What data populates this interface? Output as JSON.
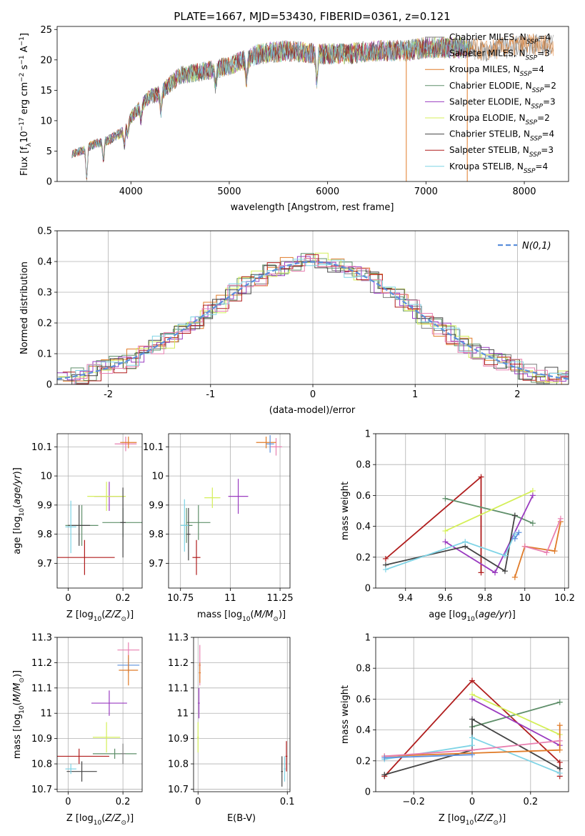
{
  "chart_data": [
    {
      "id": "spectrum",
      "type": "line",
      "title": "PLATE=1667, MJD=53430, FIBERID=0361, z=0.121",
      "xlabel": "wavelength [Angstrom, rest frame]",
      "ylabel": "Flux [f_λ10^-17 erg cm^-2 s^-1 A^-1]",
      "xlim": [
        3250,
        8450
      ],
      "ylim": [
        0,
        25.5
      ],
      "xticks": [
        4000,
        5000,
        6000,
        7000,
        8000
      ],
      "yticks": [
        0,
        5,
        10,
        15,
        20,
        25
      ],
      "legend_position": "upper right",
      "grid": false,
      "spectrum_continuum": {
        "x": [
          3400,
          3500,
          3600,
          3700,
          3800,
          3900,
          4000,
          4100,
          4200,
          4300,
          4400,
          4500,
          4700,
          5000,
          5300,
          5600,
          5900,
          6200,
          6500,
          6800,
          7000,
          7200,
          7400,
          7600,
          7800,
          8000,
          8200
        ],
        "y": [
          4.5,
          5.0,
          6.0,
          6.5,
          7.0,
          8.0,
          10.5,
          12.5,
          14.0,
          14.5,
          16.0,
          17.5,
          18.0,
          19.0,
          21.0,
          21.5,
          21.0,
          21.0,
          21.5,
          21.5,
          22.0,
          22.0,
          22.0,
          21.5,
          22.0,
          22.5,
          22.5
        ]
      },
      "absorption_features": [
        {
          "x": 3550,
          "depth": 5.0
        },
        {
          "x": 3720,
          "depth": 3.0
        },
        {
          "x": 3934,
          "depth": 3.0
        },
        {
          "x": 3968,
          "depth": 2.0
        },
        {
          "x": 4102,
          "depth": 2.5
        },
        {
          "x": 4305,
          "depth": 3.0
        },
        {
          "x": 4861,
          "depth": 3.0
        },
        {
          "x": 5175,
          "depth": 4.0
        },
        {
          "x": 5890,
          "depth": 5.0
        }
      ],
      "spikes": [
        {
          "x": 6800,
          "to": 0,
          "series": "Salpeter MILES"
        },
        {
          "x": 7420,
          "to": 0,
          "series": "Kroupa MILES"
        }
      ],
      "series": [
        {
          "name": "Chabrier MILES, N_SSP=4",
          "color": "#7f7f7f"
        },
        {
          "name": "Salpeter MILES, N_SSP=3",
          "color": "#7f7f7f"
        },
        {
          "name": "Kroupa MILES, N_SSP=4",
          "color": "#e07b28"
        },
        {
          "name": "Chabrier ELODIE, N_SSP=2",
          "color": "#5f8f6a"
        },
        {
          "name": "Salpeter ELODIE, N_SSP=3",
          "color": "#9a3bc0"
        },
        {
          "name": "Kroupa ELODIE, N_SSP=2",
          "color": "#d4ef58"
        },
        {
          "name": "Chabrier STELIB, N_SSP=4",
          "color": "#444444"
        },
        {
          "name": "Salpeter STELIB, N_SSP=3",
          "color": "#b01d1d"
        },
        {
          "name": "Kroupa STELIB, N_SSP=4",
          "color": "#7fd4e6"
        }
      ]
    },
    {
      "id": "residuals",
      "type": "line",
      "xlabel": "(data-model)/error",
      "ylabel": "Normed distribution",
      "xlim": [
        -2.5,
        2.5
      ],
      "ylim": [
        0,
        0.5
      ],
      "xticks": [
        -2,
        -1,
        0,
        1,
        2
      ],
      "yticks": [
        0.0,
        0.1,
        0.2,
        0.3,
        0.4,
        0.5
      ],
      "grid": true,
      "legend": "N(0,1)",
      "legend_position": "upper right",
      "gaussian_color": "#5b8fdc",
      "histogram_colors": [
        "#7f7f7f",
        "#e07b28",
        "#5f8f6a",
        "#9a3bc0",
        "#d4ef58",
        "#444444",
        "#b01d1d",
        "#7fd4e6",
        "#e87fb0"
      ]
    },
    {
      "id": "Z_age",
      "type": "scatter",
      "xlabel": "Z [log10(Z/Z_sun)]",
      "ylabel": "age [log10(age/yr)]",
      "xlim": [
        -0.04,
        0.27
      ],
      "ylim": [
        9.615,
        10.145
      ],
      "xticks": [
        0.0,
        0.2
      ],
      "yticks": [
        9.7,
        9.8,
        9.9,
        10.0,
        10.1
      ],
      "grid": true,
      "points": [
        {
          "x": 0.21,
          "y": 10.11,
          "xerr": 0.04,
          "yerr": 0.025,
          "color": "#e87fb0"
        },
        {
          "x": 0.22,
          "y": 10.115,
          "xerr": 0.03,
          "yerr": 0.02,
          "color": "#e07b28"
        },
        {
          "x": 0.2,
          "y": 9.84,
          "xerr": 0.075,
          "yerr": 0.05,
          "color": "#5f8f6a"
        },
        {
          "x": 0.15,
          "y": 9.93,
          "xerr": 0.055,
          "yerr": 0.05,
          "color": "#9a3bc0"
        },
        {
          "x": 0.14,
          "y": 9.93,
          "xerr": 0.07,
          "yerr": 0.05,
          "color": "#d4ef58"
        },
        {
          "x": 0.2,
          "y": 9.84,
          "xerr": 0.01,
          "yerr": 0.12,
          "color": "#444444"
        },
        {
          "x": 0.05,
          "y": 9.83,
          "xerr": 0.06,
          "yerr": 0.07,
          "color": "#5f8f6a"
        },
        {
          "x": 0.04,
          "y": 9.83,
          "xerr": 0.04,
          "yerr": 0.07,
          "color": "#444444"
        },
        {
          "x": 0.01,
          "y": 9.825,
          "xerr": 0.02,
          "yerr": 0.09,
          "color": "#7fd4e6"
        },
        {
          "x": 0.06,
          "y": 9.72,
          "xerr": 0.11,
          "yerr": 0.06,
          "color": "#b01d1d"
        }
      ]
    },
    {
      "id": "mass_age",
      "type": "scatter",
      "xlabel": "mass [log10(M/M_sun)]",
      "ylabel": "",
      "xlim": [
        10.69,
        11.3
      ],
      "ylim": [
        9.615,
        10.145
      ],
      "xticks": [
        10.75,
        11.0,
        11.25
      ],
      "yticks": [
        9.7,
        9.8,
        9.9,
        10.0,
        10.1
      ],
      "grid": true,
      "points": [
        {
          "x": 11.23,
          "y": 10.1,
          "xerr": 0.03,
          "yerr": 0.03,
          "color": "#e87fb0"
        },
        {
          "x": 11.18,
          "y": 10.115,
          "xerr": 0.05,
          "yerr": 0.02,
          "color": "#e07b28"
        },
        {
          "x": 11.2,
          "y": 10.11,
          "xerr": 0.02,
          "yerr": 0.03,
          "color": "#5b8fdc"
        },
        {
          "x": 11.04,
          "y": 9.93,
          "xerr": 0.05,
          "yerr": 0.06,
          "color": "#9a3bc0"
        },
        {
          "x": 10.91,
          "y": 9.925,
          "xerr": 0.04,
          "yerr": 0.035,
          "color": "#d4ef58"
        },
        {
          "x": 10.84,
          "y": 9.84,
          "xerr": 0.06,
          "yerr": 0.06,
          "color": "#5f8f6a"
        },
        {
          "x": 10.78,
          "y": 9.83,
          "xerr": 0.03,
          "yerr": 0.06,
          "color": "#5f8f6a"
        },
        {
          "x": 10.79,
          "y": 9.8,
          "xerr": 0.01,
          "yerr": 0.09,
          "color": "#444444"
        },
        {
          "x": 10.77,
          "y": 9.83,
          "xerr": 0.02,
          "yerr": 0.09,
          "color": "#7fd4e6"
        },
        {
          "x": 10.83,
          "y": 9.72,
          "xerr": 0.02,
          "yerr": 0.06,
          "color": "#b01d1d"
        }
      ]
    },
    {
      "id": "age_weight",
      "type": "line",
      "xlabel": "age [log10(age/yr)]",
      "ylabel": "mass weight",
      "xlim": [
        9.25,
        10.22
      ],
      "ylim": [
        0,
        1.0
      ],
      "xticks": [
        9.4,
        9.6,
        9.8,
        10.0,
        10.2
      ],
      "yticks": [
        0.0,
        0.2,
        0.4,
        0.6,
        0.8,
        1.0
      ],
      "grid": true,
      "series": [
        {
          "color": "#b01d1d",
          "x": [
            9.3,
            9.78,
            9.78
          ],
          "y": [
            0.19,
            0.72,
            0.1
          ]
        },
        {
          "color": "#5f8f6a",
          "x": [
            9.6,
            9.95,
            10.04
          ],
          "y": [
            0.58,
            0.47,
            0.42
          ]
        },
        {
          "color": "#d4ef58",
          "x": [
            9.6,
            10.04
          ],
          "y": [
            0.37,
            0.63
          ]
        },
        {
          "color": "#9a3bc0",
          "x": [
            9.6,
            9.85,
            10.04
          ],
          "y": [
            0.3,
            0.1,
            0.6
          ]
        },
        {
          "color": "#444444",
          "x": [
            9.3,
            9.7,
            9.9,
            9.95
          ],
          "y": [
            0.15,
            0.27,
            0.11,
            0.47
          ]
        },
        {
          "color": "#7fd4e6",
          "x": [
            9.3,
            9.7,
            9.9,
            9.95
          ],
          "y": [
            0.12,
            0.3,
            0.21,
            0.35
          ]
        },
        {
          "color": "#e07b28",
          "x": [
            9.95,
            10.0,
            10.15,
            10.18
          ],
          "y": [
            0.07,
            0.27,
            0.24,
            0.43
          ]
        },
        {
          "color": "#e87fb0",
          "x": [
            10.0,
            10.11,
            10.18
          ],
          "y": [
            0.27,
            0.23,
            0.45
          ]
        },
        {
          "color": "#5b8fdc",
          "x": [
            9.95,
            9.97
          ],
          "y": [
            0.32,
            0.36
          ]
        }
      ]
    },
    {
      "id": "Z_mass",
      "type": "scatter",
      "xlabel": "Z [log10(Z/Z_sun)]",
      "ylabel": "mass [log10(M/M_sun)]",
      "xlim": [
        -0.04,
        0.27
      ],
      "ylim": [
        10.69,
        11.3
      ],
      "xticks": [
        0.0,
        0.2
      ],
      "yticks": [
        10.7,
        10.8,
        10.9,
        11.0,
        11.1,
        11.2,
        11.3
      ],
      "grid": true,
      "points": [
        {
          "x": 0.22,
          "y": 11.25,
          "xerr": 0.04,
          "yerr": 0.03,
          "color": "#e87fb0"
        },
        {
          "x": 0.22,
          "y": 11.19,
          "xerr": 0.04,
          "yerr": 0.03,
          "color": "#5b8fdc"
        },
        {
          "x": 0.22,
          "y": 11.17,
          "xerr": 0.035,
          "yerr": 0.06,
          "color": "#e07b28"
        },
        {
          "x": 0.15,
          "y": 11.04,
          "xerr": 0.065,
          "yerr": 0.05,
          "color": "#9a3bc0"
        },
        {
          "x": 0.14,
          "y": 10.905,
          "xerr": 0.05,
          "yerr": 0.06,
          "color": "#d4ef58"
        },
        {
          "x": 0.17,
          "y": 10.84,
          "xerr": 0.08,
          "yerr": 0.02,
          "color": "#5f8f6a"
        },
        {
          "x": 0.04,
          "y": 10.83,
          "xerr": 0.11,
          "yerr": 0.03,
          "color": "#b01d1d"
        },
        {
          "x": 0.05,
          "y": 10.77,
          "xerr": 0.055,
          "yerr": 0.04,
          "color": "#444444"
        },
        {
          "x": 0.01,
          "y": 10.78,
          "xerr": 0.02,
          "yerr": 0.02,
          "color": "#7fd4e6"
        },
        {
          "x": 0.2,
          "y": 10.84,
          "xerr": 0.01,
          "yerr": 0.04,
          "color": "#7f7f7f"
        }
      ]
    },
    {
      "id": "ebv_mass",
      "type": "scatter",
      "xlabel": "E(B-V)",
      "ylabel": "",
      "xlim": [
        -0.005,
        0.103
      ],
      "ylim": [
        10.69,
        11.3
      ],
      "xticks": [
        0.0,
        0.1
      ],
      "yticks": [
        10.7,
        10.8,
        10.9,
        11.0,
        11.1,
        11.2,
        11.3
      ],
      "grid": true,
      "points": [
        {
          "x": 0.002,
          "y": 11.19,
          "xerr": 0.001,
          "yerr": 0.08,
          "color": "#e87fb0"
        },
        {
          "x": 0.002,
          "y": 11.16,
          "xerr": 0.001,
          "yerr": 0.04,
          "color": "#e07b28"
        },
        {
          "x": 0.001,
          "y": 11.04,
          "xerr": 0.001,
          "yerr": 0.06,
          "color": "#9a3bc0"
        },
        {
          "x": 0.0,
          "y": 10.905,
          "xerr": 0.001,
          "yerr": 0.06,
          "color": "#d4ef58"
        },
        {
          "x": 0.094,
          "y": 10.77,
          "xerr": 0.001,
          "yerr": 0.06,
          "color": "#444444"
        },
        {
          "x": 0.099,
          "y": 10.83,
          "xerr": 0.001,
          "yerr": 0.06,
          "color": "#b01d1d"
        },
        {
          "x": 0.097,
          "y": 10.78,
          "xerr": 0.001,
          "yerr": 0.05,
          "color": "#7fd4e6"
        }
      ]
    },
    {
      "id": "Z_weight",
      "type": "line",
      "xlabel": "Z [log10(Z/Z_sun)]",
      "ylabel": "mass weight",
      "xlim": [
        -0.33,
        0.33
      ],
      "ylim": [
        0,
        1.0
      ],
      "xticks": [
        -0.2,
        0.0,
        0.2
      ],
      "yticks": [
        0.0,
        0.2,
        0.4,
        0.6,
        0.8,
        1.0
      ],
      "grid": true,
      "series": [
        {
          "color": "#b01d1d",
          "x": [
            -0.3,
            0.0,
            0.3,
            0.3
          ],
          "y": [
            0.1,
            0.72,
            0.19,
            0.1
          ]
        },
        {
          "color": "#5f8f6a",
          "x": [
            0.0,
            0.3
          ],
          "y": [
            0.42,
            0.58
          ]
        },
        {
          "color": "#d4ef58",
          "x": [
            0.0,
            0.3
          ],
          "y": [
            0.63,
            0.37
          ]
        },
        {
          "color": "#9a3bc0",
          "x": [
            0.0,
            0.3
          ],
          "y": [
            0.6,
            0.3
          ]
        },
        {
          "color": "#444444",
          "x": [
            -0.3,
            0.0,
            0.0,
            0.3
          ],
          "y": [
            0.11,
            0.27,
            0.47,
            0.15
          ]
        },
        {
          "color": "#7fd4e6",
          "x": [
            -0.3,
            0.0,
            0.0,
            0.3
          ],
          "y": [
            0.21,
            0.3,
            0.35,
            0.12
          ]
        },
        {
          "color": "#e07b28",
          "x": [
            -0.3,
            0.0,
            0.3,
            0.3
          ],
          "y": [
            0.23,
            0.25,
            0.27,
            0.43
          ]
        },
        {
          "color": "#e87fb0",
          "x": [
            -0.3,
            0.0,
            0.3
          ],
          "y": [
            0.23,
            0.27,
            0.33
          ]
        },
        {
          "color": "#5b8fdc",
          "x": [
            -0.3,
            0.0
          ],
          "y": [
            0.22,
            0.24
          ]
        }
      ]
    }
  ]
}
